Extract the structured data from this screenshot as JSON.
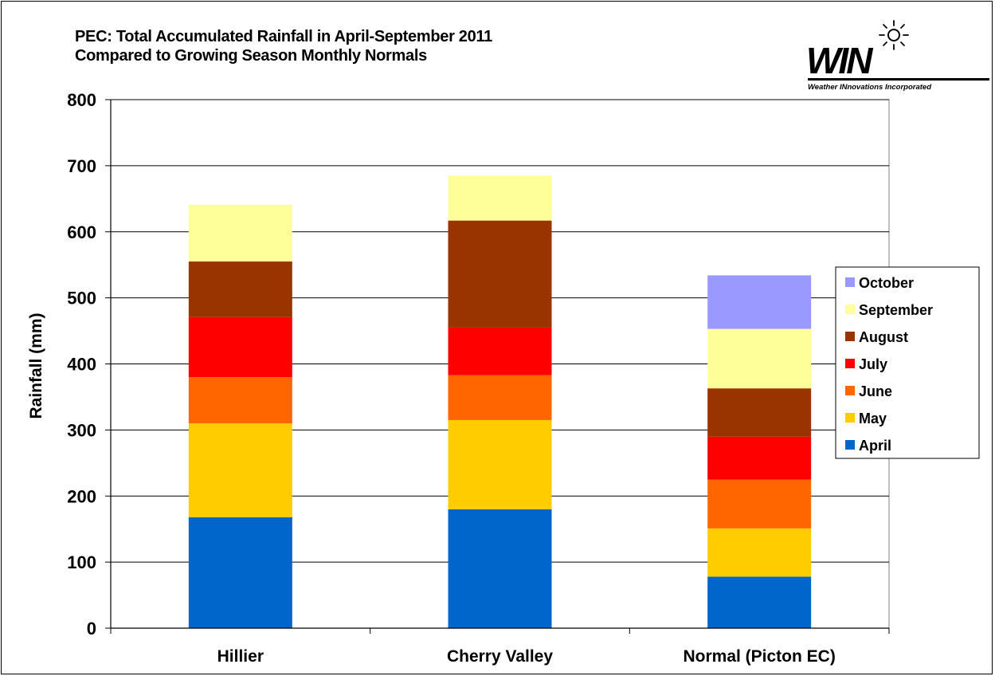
{
  "title_lines": [
    "PEC: Total Accumulated Rainfall in April-September 2011",
    "Compared to Growing Season Monthly Normals"
  ],
  "logo": {
    "text": "WIN",
    "tagline": "Weather INnovations Incorporated",
    "icon": "sun-icon"
  },
  "chart_data": {
    "type": "bar",
    "stacked": true,
    "title": "PEC: Total Accumulated Rainfall in April-September 2011 Compared to Growing Season Monthly Normals",
    "xlabel": "",
    "ylabel": "Rainfall (mm)",
    "ylim": [
      0,
      800
    ],
    "yticks": [
      0,
      100,
      200,
      300,
      400,
      500,
      600,
      700,
      800
    ],
    "grid": true,
    "legend_position": "right",
    "categories": [
      "Hillier",
      "Cherry Valley",
      "Normal (Picton EC)"
    ],
    "series": [
      {
        "name": "April",
        "color": "#0066CC",
        "values": [
          168,
          180,
          78
        ]
      },
      {
        "name": "May",
        "color": "#FFCC00",
        "values": [
          142,
          135,
          73
        ]
      },
      {
        "name": "June",
        "color": "#FF6600",
        "values": [
          70,
          68,
          74
        ]
      },
      {
        "name": "July",
        "color": "#FF0000",
        "values": [
          91,
          72,
          65
        ]
      },
      {
        "name": "August",
        "color": "#993300",
        "values": [
          84,
          162,
          73
        ]
      },
      {
        "name": "September",
        "color": "#FFFF99",
        "values": [
          86,
          68,
          90
        ]
      },
      {
        "name": "October",
        "color": "#9999FF",
        "values": [
          null,
          null,
          81
        ]
      }
    ]
  }
}
